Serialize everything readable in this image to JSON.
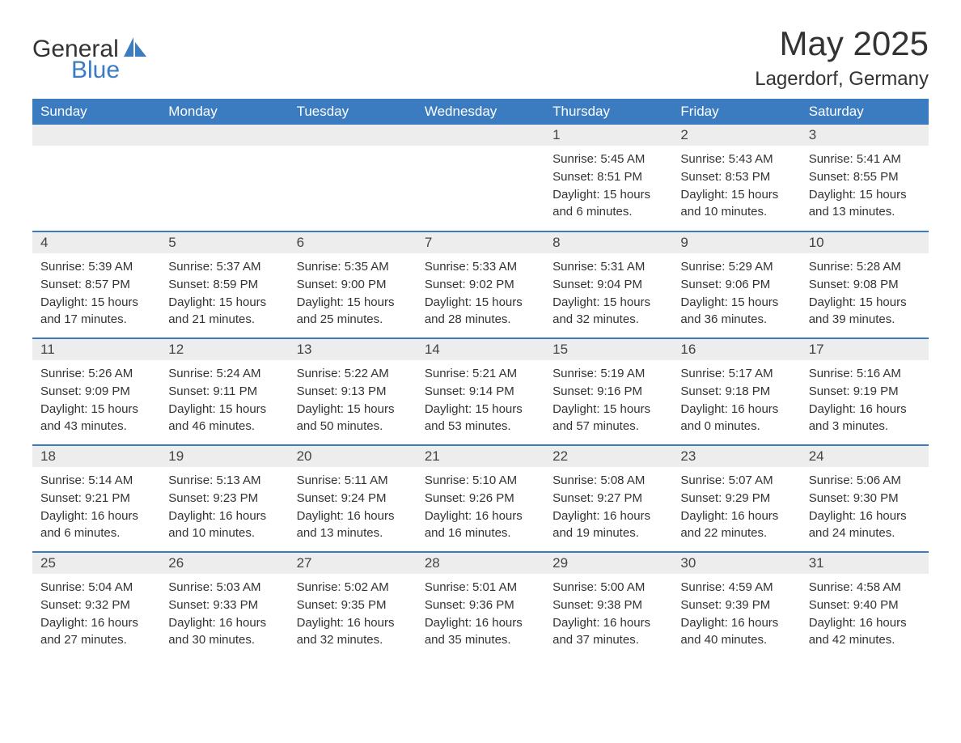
{
  "brand": {
    "part1": "General",
    "part2": "Blue"
  },
  "title": "May 2025",
  "location": "Lagerdorf, Germany",
  "colors": {
    "header_bg": "#3b7bbf",
    "header_text": "#ffffff",
    "daynum_bg": "#ededed",
    "row_divider": "#3b7bbf",
    "text": "#333333",
    "background": "#ffffff"
  },
  "typography": {
    "title_fontsize": 42,
    "location_fontsize": 24,
    "weekday_fontsize": 17,
    "daynum_fontsize": 17,
    "body_fontsize": 15
  },
  "weekdays": [
    "Sunday",
    "Monday",
    "Tuesday",
    "Wednesday",
    "Thursday",
    "Friday",
    "Saturday"
  ],
  "weeks": [
    [
      null,
      null,
      null,
      null,
      {
        "n": "1",
        "sunrise": "Sunrise: 5:45 AM",
        "sunset": "Sunset: 8:51 PM",
        "day1": "Daylight: 15 hours",
        "day2": "and 6 minutes."
      },
      {
        "n": "2",
        "sunrise": "Sunrise: 5:43 AM",
        "sunset": "Sunset: 8:53 PM",
        "day1": "Daylight: 15 hours",
        "day2": "and 10 minutes."
      },
      {
        "n": "3",
        "sunrise": "Sunrise: 5:41 AM",
        "sunset": "Sunset: 8:55 PM",
        "day1": "Daylight: 15 hours",
        "day2": "and 13 minutes."
      }
    ],
    [
      {
        "n": "4",
        "sunrise": "Sunrise: 5:39 AM",
        "sunset": "Sunset: 8:57 PM",
        "day1": "Daylight: 15 hours",
        "day2": "and 17 minutes."
      },
      {
        "n": "5",
        "sunrise": "Sunrise: 5:37 AM",
        "sunset": "Sunset: 8:59 PM",
        "day1": "Daylight: 15 hours",
        "day2": "and 21 minutes."
      },
      {
        "n": "6",
        "sunrise": "Sunrise: 5:35 AM",
        "sunset": "Sunset: 9:00 PM",
        "day1": "Daylight: 15 hours",
        "day2": "and 25 minutes."
      },
      {
        "n": "7",
        "sunrise": "Sunrise: 5:33 AM",
        "sunset": "Sunset: 9:02 PM",
        "day1": "Daylight: 15 hours",
        "day2": "and 28 minutes."
      },
      {
        "n": "8",
        "sunrise": "Sunrise: 5:31 AM",
        "sunset": "Sunset: 9:04 PM",
        "day1": "Daylight: 15 hours",
        "day2": "and 32 minutes."
      },
      {
        "n": "9",
        "sunrise": "Sunrise: 5:29 AM",
        "sunset": "Sunset: 9:06 PM",
        "day1": "Daylight: 15 hours",
        "day2": "and 36 minutes."
      },
      {
        "n": "10",
        "sunrise": "Sunrise: 5:28 AM",
        "sunset": "Sunset: 9:08 PM",
        "day1": "Daylight: 15 hours",
        "day2": "and 39 minutes."
      }
    ],
    [
      {
        "n": "11",
        "sunrise": "Sunrise: 5:26 AM",
        "sunset": "Sunset: 9:09 PM",
        "day1": "Daylight: 15 hours",
        "day2": "and 43 minutes."
      },
      {
        "n": "12",
        "sunrise": "Sunrise: 5:24 AM",
        "sunset": "Sunset: 9:11 PM",
        "day1": "Daylight: 15 hours",
        "day2": "and 46 minutes."
      },
      {
        "n": "13",
        "sunrise": "Sunrise: 5:22 AM",
        "sunset": "Sunset: 9:13 PM",
        "day1": "Daylight: 15 hours",
        "day2": "and 50 minutes."
      },
      {
        "n": "14",
        "sunrise": "Sunrise: 5:21 AM",
        "sunset": "Sunset: 9:14 PM",
        "day1": "Daylight: 15 hours",
        "day2": "and 53 minutes."
      },
      {
        "n": "15",
        "sunrise": "Sunrise: 5:19 AM",
        "sunset": "Sunset: 9:16 PM",
        "day1": "Daylight: 15 hours",
        "day2": "and 57 minutes."
      },
      {
        "n": "16",
        "sunrise": "Sunrise: 5:17 AM",
        "sunset": "Sunset: 9:18 PM",
        "day1": "Daylight: 16 hours",
        "day2": "and 0 minutes."
      },
      {
        "n": "17",
        "sunrise": "Sunrise: 5:16 AM",
        "sunset": "Sunset: 9:19 PM",
        "day1": "Daylight: 16 hours",
        "day2": "and 3 minutes."
      }
    ],
    [
      {
        "n": "18",
        "sunrise": "Sunrise: 5:14 AM",
        "sunset": "Sunset: 9:21 PM",
        "day1": "Daylight: 16 hours",
        "day2": "and 6 minutes."
      },
      {
        "n": "19",
        "sunrise": "Sunrise: 5:13 AM",
        "sunset": "Sunset: 9:23 PM",
        "day1": "Daylight: 16 hours",
        "day2": "and 10 minutes."
      },
      {
        "n": "20",
        "sunrise": "Sunrise: 5:11 AM",
        "sunset": "Sunset: 9:24 PM",
        "day1": "Daylight: 16 hours",
        "day2": "and 13 minutes."
      },
      {
        "n": "21",
        "sunrise": "Sunrise: 5:10 AM",
        "sunset": "Sunset: 9:26 PM",
        "day1": "Daylight: 16 hours",
        "day2": "and 16 minutes."
      },
      {
        "n": "22",
        "sunrise": "Sunrise: 5:08 AM",
        "sunset": "Sunset: 9:27 PM",
        "day1": "Daylight: 16 hours",
        "day2": "and 19 minutes."
      },
      {
        "n": "23",
        "sunrise": "Sunrise: 5:07 AM",
        "sunset": "Sunset: 9:29 PM",
        "day1": "Daylight: 16 hours",
        "day2": "and 22 minutes."
      },
      {
        "n": "24",
        "sunrise": "Sunrise: 5:06 AM",
        "sunset": "Sunset: 9:30 PM",
        "day1": "Daylight: 16 hours",
        "day2": "and 24 minutes."
      }
    ],
    [
      {
        "n": "25",
        "sunrise": "Sunrise: 5:04 AM",
        "sunset": "Sunset: 9:32 PM",
        "day1": "Daylight: 16 hours",
        "day2": "and 27 minutes."
      },
      {
        "n": "26",
        "sunrise": "Sunrise: 5:03 AM",
        "sunset": "Sunset: 9:33 PM",
        "day1": "Daylight: 16 hours",
        "day2": "and 30 minutes."
      },
      {
        "n": "27",
        "sunrise": "Sunrise: 5:02 AM",
        "sunset": "Sunset: 9:35 PM",
        "day1": "Daylight: 16 hours",
        "day2": "and 32 minutes."
      },
      {
        "n": "28",
        "sunrise": "Sunrise: 5:01 AM",
        "sunset": "Sunset: 9:36 PM",
        "day1": "Daylight: 16 hours",
        "day2": "and 35 minutes."
      },
      {
        "n": "29",
        "sunrise": "Sunrise: 5:00 AM",
        "sunset": "Sunset: 9:38 PM",
        "day1": "Daylight: 16 hours",
        "day2": "and 37 minutes."
      },
      {
        "n": "30",
        "sunrise": "Sunrise: 4:59 AM",
        "sunset": "Sunset: 9:39 PM",
        "day1": "Daylight: 16 hours",
        "day2": "and 40 minutes."
      },
      {
        "n": "31",
        "sunrise": "Sunrise: 4:58 AM",
        "sunset": "Sunset: 9:40 PM",
        "day1": "Daylight: 16 hours",
        "day2": "and 42 minutes."
      }
    ]
  ]
}
